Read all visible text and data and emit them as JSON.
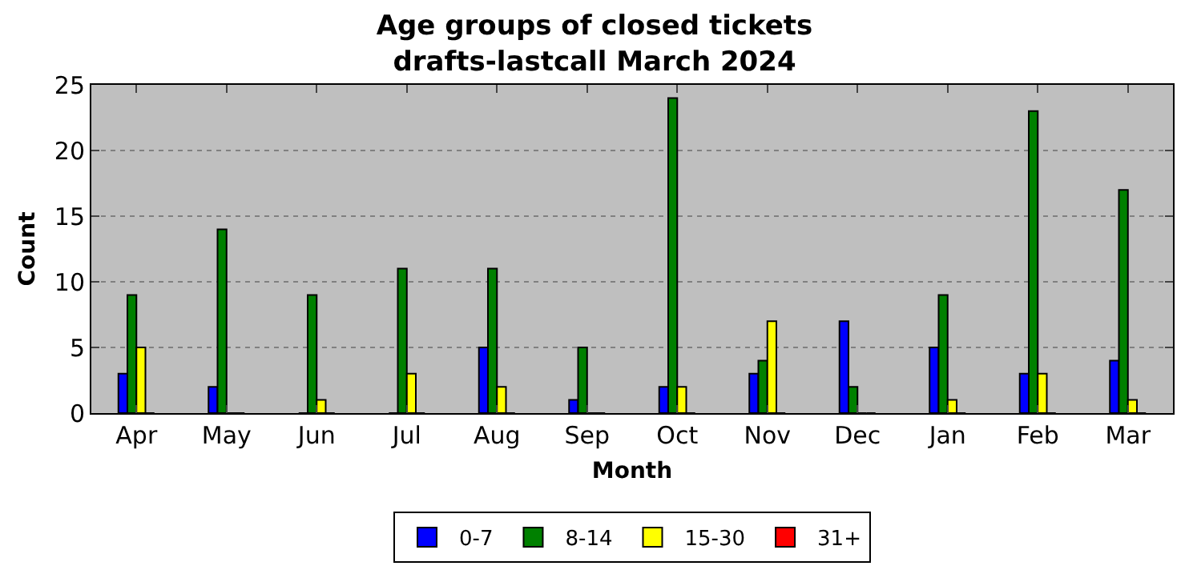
{
  "chart_data": {
    "type": "bar",
    "title": "Age groups of closed tickets\ndrafts-lastcall March 2024",
    "xlabel": "Month",
    "ylabel": "Count",
    "categories": [
      "Apr",
      "May",
      "Jun",
      "Jul",
      "Aug",
      "Sep",
      "Oct",
      "Nov",
      "Dec",
      "Jan",
      "Feb",
      "Mar"
    ],
    "series": [
      {
        "name": "0-7",
        "color": "#0000ff",
        "values": [
          3,
          2,
          0,
          0,
          5,
          1,
          2,
          3,
          7,
          5,
          3,
          4
        ]
      },
      {
        "name": "8-14",
        "color": "#008000",
        "values": [
          9,
          14,
          9,
          11,
          11,
          5,
          24,
          4,
          2,
          9,
          23,
          17
        ]
      },
      {
        "name": "15-30",
        "color": "#ffff00",
        "values": [
          5,
          0,
          1,
          3,
          2,
          0,
          2,
          7,
          0,
          1,
          3,
          1
        ]
      },
      {
        "name": "31+",
        "color": "#ff0000",
        "values": [
          0,
          0,
          0,
          0,
          0,
          0,
          0,
          0,
          0,
          0,
          0,
          0
        ]
      }
    ],
    "ylim": [
      0,
      25
    ],
    "yticks": [
      0,
      5,
      10,
      15,
      20,
      25
    ],
    "grid": "y",
    "legend": "bottom"
  }
}
